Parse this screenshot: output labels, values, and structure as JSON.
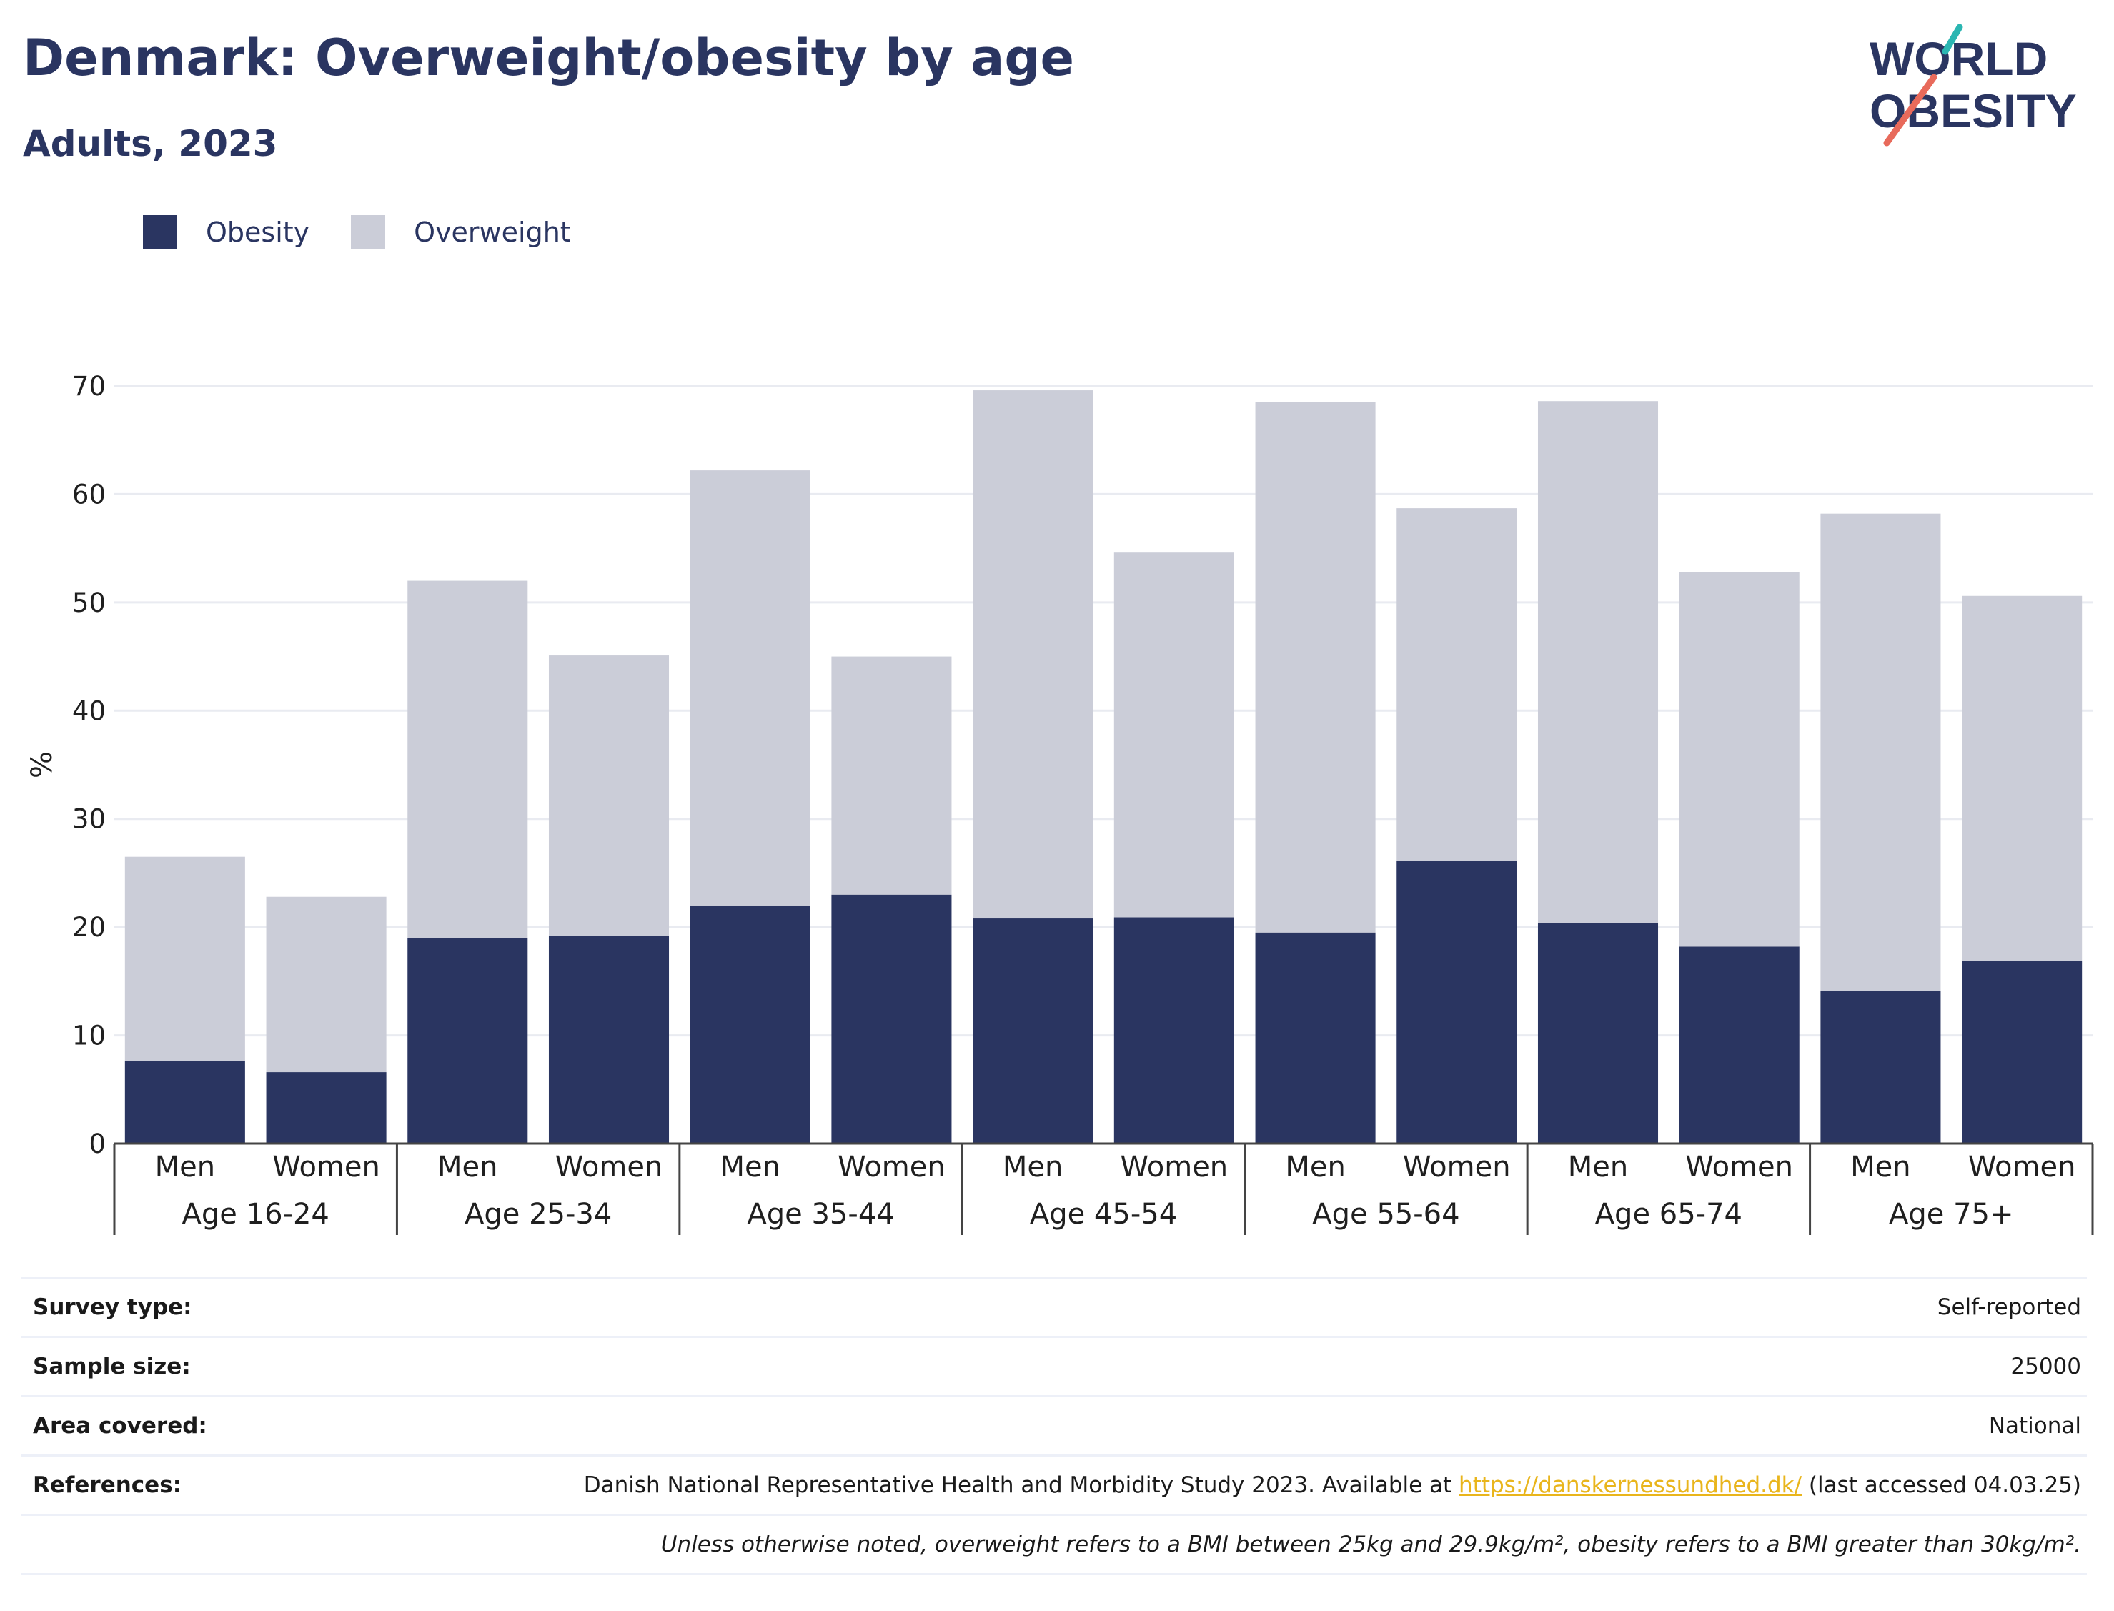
{
  "header": {
    "title": "Denmark: Overweight/obesity by age",
    "subtitle": "Adults, 2023"
  },
  "logo": {
    "line1": "WORLD",
    "line2": "OBESITY"
  },
  "colors": {
    "obesity": "#2a3561",
    "overweight": "#cbcdd8",
    "text": "#2a3561",
    "link": "#e9b51c",
    "slash_teal": "#2bb6b2",
    "slash_coral": "#e86a5b"
  },
  "chart_data": {
    "type": "bar",
    "stacked": true,
    "ylabel": "%",
    "ylim": [
      0,
      70
    ],
    "yticks": [
      0,
      10,
      20,
      30,
      40,
      50,
      60,
      70
    ],
    "grid": true,
    "legend_position": "top-left",
    "groups": [
      "Age 16-24",
      "Age 25-34",
      "Age 35-44",
      "Age 45-54",
      "Age 55-64",
      "Age 65-74",
      "Age 75+"
    ],
    "subcategories": [
      "Men",
      "Women"
    ],
    "series": [
      {
        "name": "Obesity",
        "values": [
          7.6,
          6.6,
          19.0,
          19.2,
          22.0,
          23.0,
          20.8,
          20.9,
          19.5,
          26.1,
          20.4,
          18.2,
          14.1,
          16.9
        ]
      },
      {
        "name": "Overweight",
        "values": [
          18.9,
          16.2,
          33.0,
          25.9,
          40.2,
          22.0,
          48.8,
          33.7,
          49.0,
          32.6,
          48.2,
          34.6,
          44.1,
          33.7
        ]
      }
    ]
  },
  "info": {
    "survey_type_label": "Survey type:",
    "survey_type_value": "Self-reported",
    "sample_size_label": "Sample size:",
    "sample_size_value": "25000",
    "area_label": "Area covered:",
    "area_value": "National",
    "references_label": "References:",
    "references_prefix": "Danish National Representative Health and Morbidity Study 2023. Available at ",
    "references_link": "https://danskernessundhed.dk/",
    "references_suffix": " (last accessed 04.03.25)",
    "note": "Unless otherwise noted, overweight refers to a BMI between 25kg and 29.9kg/m², obesity refers to a BMI greater than 30kg/m²."
  }
}
